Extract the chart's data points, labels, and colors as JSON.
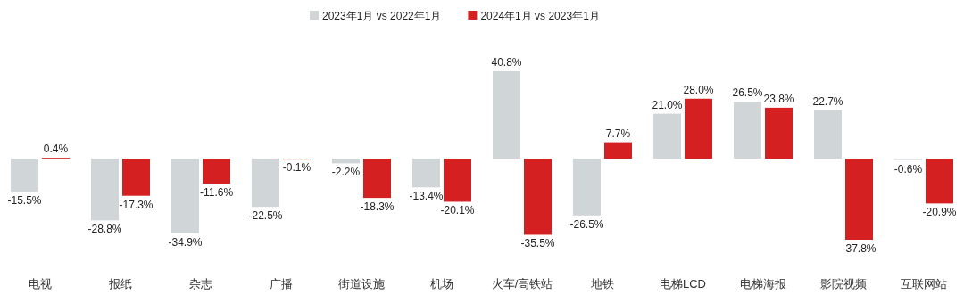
{
  "chart_data": {
    "type": "bar",
    "categories": [
      "电视",
      "报纸",
      "杂志",
      "广播",
      "街道设施",
      "机场",
      "火车/高铁站",
      "地铁",
      "电梯LCD",
      "电梯海报",
      "影院视频",
      "互联网站"
    ],
    "series": [
      {
        "name": "2023年1月 vs 2022年1月",
        "color": "#d0d5d8",
        "values": [
          -15.5,
          -28.8,
          -34.9,
          -22.5,
          -2.2,
          -13.4,
          40.8,
          -26.5,
          21.0,
          26.5,
          22.7,
          -0.6
        ],
        "value_labels": [
          "-15.5%",
          "-28.8%",
          "-34.9%",
          "-22.5%",
          "-2.2%",
          "-13.4%",
          "40.8%",
          "-26.5%",
          "21.0%",
          "26.5%",
          "22.7%",
          "-0.6%"
        ]
      },
      {
        "name": "2024年1月 vs 2023年1月",
        "color": "#d42020",
        "values": [
          0.4,
          -17.3,
          -11.6,
          -0.1,
          -18.3,
          -20.1,
          -35.5,
          7.7,
          28.0,
          23.8,
          -37.8,
          -20.9
        ],
        "value_labels": [
          "0.4%",
          "-17.3%",
          "-11.6%",
          "-0.1%",
          "-18.3%",
          "-20.1%",
          "-35.5%",
          "7.7%",
          "28.0%",
          "23.8%",
          "-37.8%",
          "-20.9%"
        ]
      }
    ],
    "legend": "top",
    "grid": false
  }
}
